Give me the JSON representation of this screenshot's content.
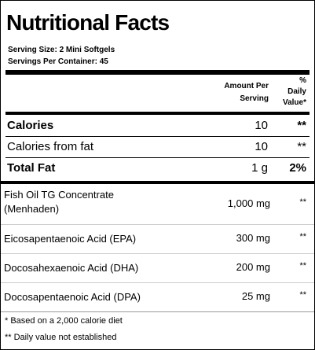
{
  "title": "Nutritional Facts",
  "serving_size": "Serving Size:  2 Mini Softgels",
  "servings_per_container": "Servings Per Container:  45",
  "header": {
    "amount_line1": "Amount Per",
    "amount_line2": "Serving",
    "dv_line1": "%",
    "dv_line2": "Daily",
    "dv_line3": "Value*"
  },
  "nutrients": [
    {
      "name": "Calories",
      "amount": "10",
      "dv": "**"
    },
    {
      "name": "Calories from fat",
      "amount": "10",
      "dv": "**"
    },
    {
      "name": "Total Fat",
      "amount": "1 g",
      "dv": "2%"
    }
  ],
  "ingredients": [
    {
      "name_line1": "Fish Oil TG Concentrate",
      "name_line2": "(Menhaden)",
      "amount": "1,000 mg",
      "dv": "**"
    },
    {
      "name": "Eicosapentaenoic Acid (EPA)",
      "amount": "300 mg",
      "dv": "**"
    },
    {
      "name": "Docosahexaenoic Acid (DHA)",
      "amount": "200 mg",
      "dv": "**"
    },
    {
      "name": "Docosapentaenoic Acid (DPA)",
      "amount": "25 mg",
      "dv": "**"
    }
  ],
  "footnotes": [
    "* Based on a 2,000 calorie diet",
    "** Daily value not established"
  ]
}
